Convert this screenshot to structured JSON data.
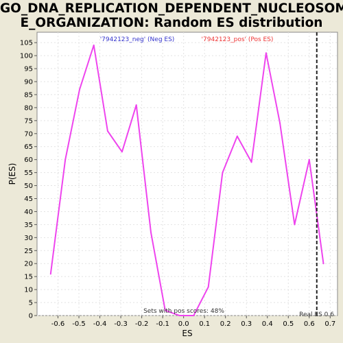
{
  "chart_data": {
    "type": "line",
    "title_line1": "GO_DNA_REPLICATION_DEPENDENT_NUCLEOSOM",
    "title_line2": "E_ORGANIZATION: Random ES distribution",
    "xlabel": "ES",
    "ylabel": "P(ES)",
    "xlim": [
      -0.7,
      0.735
    ],
    "ylim": [
      0,
      109
    ],
    "xticks": [
      -0.6,
      -0.5,
      -0.4,
      -0.3,
      -0.2,
      -0.1,
      0.0,
      0.1,
      0.2,
      0.3,
      0.4,
      0.5,
      0.6,
      0.7
    ],
    "xtick_labels": [
      "-0.6",
      "-0.5",
      "-0.4",
      "-0.3",
      "-0.2",
      "-0.1",
      "0.0",
      "0.1",
      "0.2",
      "0.3",
      "0.4",
      "0.5",
      "0.6",
      "0.7"
    ],
    "yticks": [
      0,
      5,
      10,
      15,
      20,
      25,
      30,
      35,
      40,
      45,
      50,
      55,
      60,
      65,
      70,
      75,
      80,
      85,
      90,
      95,
      100,
      105
    ],
    "ytick_labels": [
      "0",
      "5",
      "10",
      "15",
      "20",
      "25",
      "30",
      "35",
      "40",
      "45",
      "50",
      "55",
      "60",
      "65",
      "70",
      "75",
      "80",
      "85",
      "90",
      "95",
      "100",
      "105"
    ],
    "grid": true,
    "series": [
      {
        "name": "ES distribution",
        "color": "#ee44ee",
        "x": [
          -0.635,
          -0.565,
          -0.497,
          -0.429,
          -0.363,
          -0.294,
          -0.226,
          -0.156,
          -0.088,
          -0.02,
          0.048,
          0.118,
          0.186,
          0.256,
          0.324,
          0.394,
          0.46,
          0.53,
          0.6,
          0.668
        ],
        "y": [
          16,
          60,
          87,
          104,
          71,
          63,
          81,
          32,
          2,
          0,
          0,
          11,
          55,
          69,
          59,
          101,
          74,
          35,
          60,
          20
        ]
      }
    ],
    "legend_neg": "'7942123_neg' (Neg ES)",
    "legend_neg_color": "#3333cc",
    "legend_pos": "'7942123_pos' (Pos ES)",
    "legend_pos_color": "#ee3333",
    "real_es": 0.636,
    "real_es_label": "Real ES 0.6",
    "sets_label": "Sets with pos scores: 48%"
  }
}
